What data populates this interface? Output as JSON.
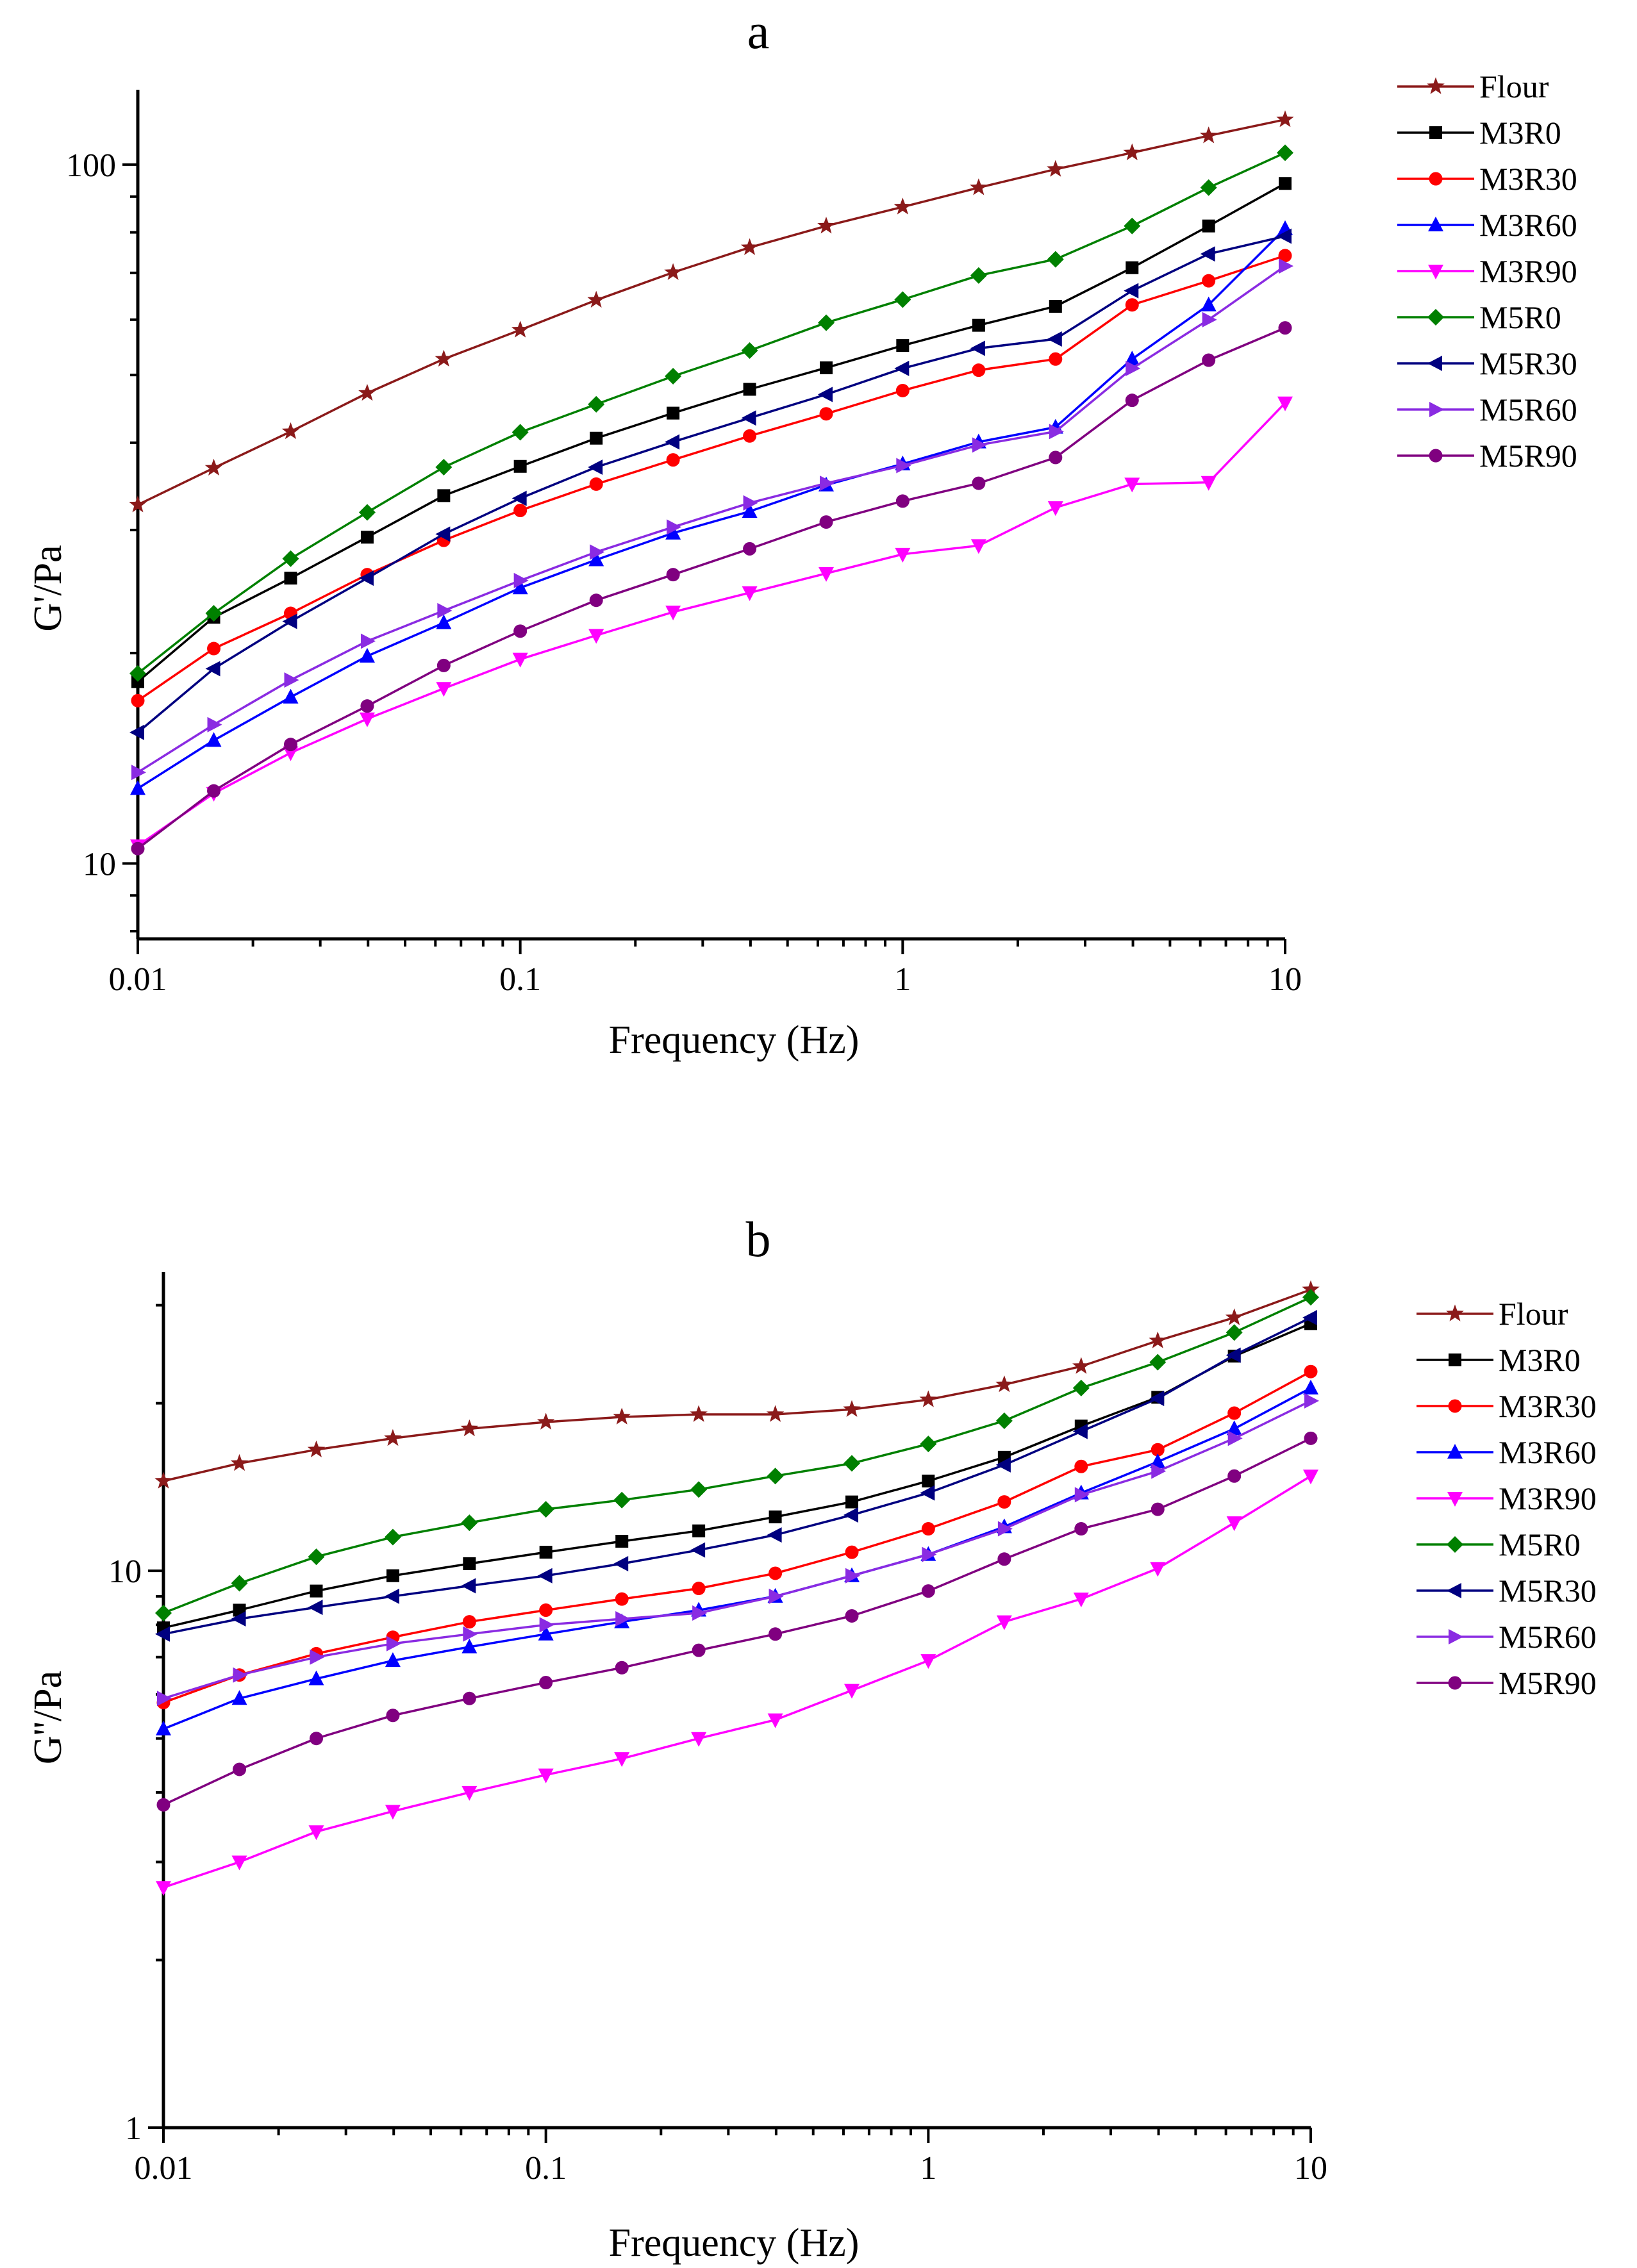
{
  "chart_data": [
    {
      "type": "line",
      "title": "a",
      "xlabel": "Frequency (Hz)",
      "ylabel": "G'/Pa",
      "xscale": "log",
      "yscale": "log",
      "xlim": [
        0.01,
        10
      ],
      "ylim": [
        7.8,
        128
      ],
      "xticks": [
        0.01,
        0.1,
        1,
        10
      ],
      "xtick_labels": [
        "0.01",
        "0.1",
        "1",
        "10"
      ],
      "yticks": [
        10,
        100
      ],
      "ytick_labels": [
        "10",
        "100"
      ],
      "legend_position": "right",
      "x": [
        0.01,
        0.0158,
        0.0251,
        0.0398,
        0.0631,
        0.1,
        0.158,
        0.251,
        0.398,
        0.631,
        1,
        1.58,
        2.51,
        3.98,
        6.31,
        10
      ],
      "series": [
        {
          "name": "Flour",
          "color": "#8b1a1a",
          "marker": "star",
          "values": [
            32.6,
            36.8,
            41.5,
            47.1,
            52.7,
            58.0,
            64.0,
            70.1,
            76.1,
            81.7,
            87.0,
            92.7,
            98.5,
            104,
            110,
            116
          ]
        },
        {
          "name": "M3R0",
          "color": "#000000",
          "marker": "square",
          "values": [
            18.2,
            22.5,
            25.6,
            29.3,
            33.6,
            37.0,
            40.6,
            44.1,
            47.7,
            51.2,
            55.1,
            58.9,
            62.7,
            71.2,
            81.7,
            94.0
          ]
        },
        {
          "name": "M3R30",
          "color": "#ff0000",
          "marker": "circle",
          "values": [
            17.1,
            20.3,
            22.8,
            25.9,
            29.0,
            32.0,
            34.9,
            37.8,
            40.9,
            44.0,
            47.5,
            50.8,
            52.7,
            63.0,
            68.2,
            74.1
          ]
        },
        {
          "name": "M3R60",
          "color": "#0000ff",
          "marker": "triangle-up",
          "values": [
            12.8,
            15.0,
            17.3,
            19.8,
            22.1,
            24.8,
            27.2,
            29.7,
            31.9,
            34.8,
            37.3,
            40.1,
            42.1,
            52.7,
            63.0,
            81.0
          ]
        },
        {
          "name": "M3R90",
          "color": "#ff00ff",
          "marker": "triangle-down",
          "values": [
            10.6,
            12.6,
            14.4,
            16.1,
            17.8,
            19.6,
            21.2,
            22.9,
            24.4,
            26.0,
            27.7,
            28.5,
            32.3,
            34.9,
            35.1,
            45.6
          ]
        },
        {
          "name": "M5R0",
          "color": "#008000",
          "marker": "diamond",
          "values": [
            18.7,
            22.8,
            27.3,
            31.8,
            36.9,
            41.4,
            45.4,
            49.8,
            54.2,
            59.4,
            64.1,
            69.4,
            73.2,
            81.7,
            92.7,
            104
          ]
        },
        {
          "name": "M5R30",
          "color": "#000080",
          "marker": "triangle-left",
          "values": [
            15.4,
            19.0,
            22.2,
            25.6,
            29.6,
            33.3,
            36.9,
            40.1,
            43.4,
            46.9,
            51.1,
            54.6,
            56.3,
            66.0,
            74.5,
            79.0
          ]
        },
        {
          "name": "M5R60",
          "color": "#8a2be2",
          "marker": "triangle-right",
          "values": [
            13.5,
            15.8,
            18.3,
            20.8,
            23.0,
            25.4,
            27.9,
            30.3,
            32.8,
            35.0,
            37.1,
            39.7,
            41.5,
            51.1,
            60.0,
            71.6
          ]
        },
        {
          "name": "M5R90",
          "color": "#800080",
          "marker": "circle",
          "values": [
            10.5,
            12.7,
            14.8,
            16.8,
            19.2,
            21.5,
            23.8,
            25.9,
            28.2,
            30.8,
            33.0,
            35.0,
            38.1,
            46.0,
            52.5,
            58.4
          ]
        }
      ]
    },
    {
      "type": "line",
      "title": "b",
      "xlabel": "Frequency (Hz)",
      "ylabel": "G''/Pa",
      "xscale": "log",
      "yscale": "log",
      "xlim": [
        0.01,
        10
      ],
      "ylim": [
        1,
        34.4
      ],
      "xticks": [
        0.01,
        0.1,
        1,
        10
      ],
      "xtick_labels": [
        "0.01",
        "0.1",
        "1",
        "10"
      ],
      "yticks": [
        1,
        10
      ],
      "ytick_labels": [
        "1",
        "10"
      ],
      "legend_position": "right",
      "x": [
        0.01,
        0.0158,
        0.0251,
        0.0398,
        0.0631,
        0.1,
        0.158,
        0.251,
        0.398,
        0.631,
        1,
        1.58,
        2.51,
        3.98,
        6.31,
        10
      ],
      "series": [
        {
          "name": "Flour",
          "color": "#8b1a1a",
          "marker": "star",
          "values": [
            14.5,
            15.6,
            16.5,
            17.3,
            18.0,
            18.5,
            18.9,
            19.1,
            19.1,
            19.5,
            20.3,
            21.6,
            23.3,
            25.9,
            28.5,
            32.0
          ]
        },
        {
          "name": "M3R0",
          "color": "#000000",
          "marker": "square",
          "values": [
            7.9,
            8.5,
            9.2,
            9.8,
            10.3,
            10.8,
            11.3,
            11.8,
            12.5,
            13.3,
            14.5,
            16.0,
            18.2,
            20.5,
            24.3,
            27.8
          ]
        },
        {
          "name": "M3R30",
          "color": "#ff0000",
          "marker": "circle",
          "values": [
            5.8,
            6.5,
            7.1,
            7.6,
            8.1,
            8.5,
            8.9,
            9.3,
            9.9,
            10.8,
            11.9,
            13.3,
            15.4,
            16.5,
            19.2,
            22.8
          ]
        },
        {
          "name": "M3R60",
          "color": "#0000ff",
          "marker": "triangle-up",
          "values": [
            5.2,
            5.9,
            6.4,
            6.9,
            7.3,
            7.7,
            8.1,
            8.5,
            9.0,
            9.8,
            10.7,
            12.0,
            13.8,
            15.7,
            18.0,
            21.3
          ]
        },
        {
          "name": "M3R90",
          "color": "#ff00ff",
          "marker": "triangle-down",
          "values": [
            2.7,
            3.0,
            3.4,
            3.7,
            4.0,
            4.3,
            4.6,
            5.0,
            5.4,
            6.1,
            6.9,
            8.1,
            8.9,
            10.1,
            12.2,
            14.8
          ]
        },
        {
          "name": "M5R0",
          "color": "#008000",
          "marker": "diamond",
          "values": [
            8.4,
            9.5,
            10.6,
            11.5,
            12.2,
            12.9,
            13.4,
            14.0,
            14.8,
            15.6,
            16.9,
            18.6,
            21.3,
            23.7,
            26.8,
            31.0
          ]
        },
        {
          "name": "M5R30",
          "color": "#000080",
          "marker": "triangle-left",
          "values": [
            7.7,
            8.2,
            8.6,
            9.0,
            9.4,
            9.8,
            10.3,
            10.9,
            11.6,
            12.6,
            13.8,
            15.5,
            17.8,
            20.4,
            24.4,
            28.5
          ]
        },
        {
          "name": "M5R60",
          "color": "#8a2be2",
          "marker": "triangle-right",
          "values": [
            5.9,
            6.5,
            7.0,
            7.4,
            7.7,
            8.0,
            8.2,
            8.4,
            9.0,
            9.8,
            10.7,
            11.9,
            13.7,
            15.1,
            17.3,
            20.2
          ]
        },
        {
          "name": "M5R90",
          "color": "#800080",
          "marker": "circle",
          "values": [
            3.8,
            4.4,
            5.0,
            5.5,
            5.9,
            6.3,
            6.7,
            7.2,
            7.7,
            8.3,
            9.2,
            10.5,
            11.9,
            12.9,
            14.8,
            17.3
          ]
        }
      ]
    }
  ]
}
